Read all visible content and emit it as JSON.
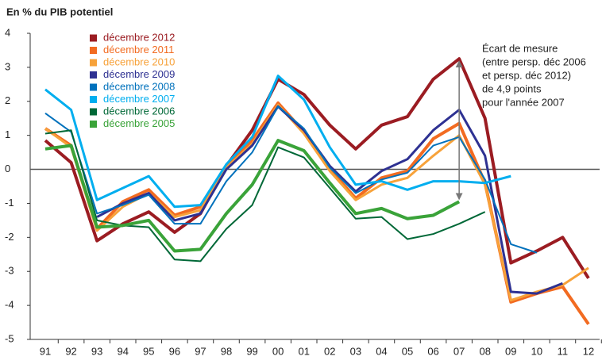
{
  "chart_data": {
    "type": "line",
    "y_label": "En % du PIB potentiel",
    "categories": [
      "91",
      "92",
      "93",
      "94",
      "95",
      "96",
      "97",
      "98",
      "99",
      "00",
      "01",
      "02",
      "03",
      "04",
      "05",
      "06",
      "07",
      "08",
      "09",
      "10",
      "11",
      "12"
    ],
    "ylim": [
      -5,
      4
    ],
    "yticks": [
      -5,
      -4,
      -3,
      -2,
      -1,
      0,
      1,
      2,
      3,
      4
    ],
    "series": [
      {
        "name": "décembre 2012",
        "color": "#9b1c22",
        "width": 4,
        "values": [
          0.85,
          0.2,
          -2.1,
          -1.6,
          -1.25,
          -1.85,
          -1.3,
          0.1,
          1.15,
          2.65,
          2.2,
          1.3,
          0.6,
          1.3,
          1.55,
          2.65,
          3.25,
          1.5,
          -2.75,
          -2.4,
          -2.0,
          -3.2
        ]
      },
      {
        "name": "décembre 2011",
        "color": "#f26b21",
        "width": 4,
        "values": [
          1.2,
          0.7,
          -1.75,
          -0.95,
          -0.6,
          -1.35,
          -1.1,
          0.1,
          0.85,
          1.95,
          1.1,
          0.0,
          -0.85,
          -0.25,
          -0.05,
          0.9,
          1.35,
          -0.4,
          -3.9,
          -3.65,
          -3.45,
          -4.55
        ]
      },
      {
        "name": "décembre 2010",
        "color": "#f7a23a",
        "width": 3,
        "values": [
          1.2,
          0.65,
          -1.8,
          -1.1,
          -0.7,
          -1.4,
          -1.2,
          0.05,
          0.75,
          1.9,
          1.05,
          -0.05,
          -0.9,
          -0.45,
          -0.25,
          0.4,
          1.0,
          -0.45,
          -3.85,
          -3.6,
          -3.4,
          -2.9
        ]
      },
      {
        "name": "décembre 2009",
        "color": "#2e3192",
        "width": 3,
        "values": [
          null,
          null,
          -1.4,
          -1.0,
          -0.7,
          -1.5,
          -1.3,
          0.0,
          0.7,
          1.85,
          1.15,
          0.1,
          -0.65,
          -0.05,
          0.3,
          1.15,
          1.75,
          0.4,
          -3.6,
          -3.65,
          -3.35,
          null
        ]
      },
      {
        "name": "décembre 2008",
        "color": "#0071bc",
        "width": 2,
        "values": [
          1.65,
          1.1,
          -1.3,
          -1.05,
          -0.75,
          -1.6,
          -1.6,
          -0.35,
          0.5,
          1.85,
          1.2,
          0.05,
          -0.7,
          -0.3,
          -0.1,
          0.7,
          0.95,
          -0.3,
          -2.2,
          -2.45,
          null,
          null
        ]
      },
      {
        "name": "décembre 2007",
        "color": "#00aeef",
        "width": 3,
        "values": [
          2.35,
          1.75,
          -0.9,
          -0.55,
          -0.2,
          -1.1,
          -1.05,
          0.15,
          0.95,
          2.75,
          2.05,
          0.65,
          -0.45,
          -0.35,
          -0.6,
          -0.35,
          -0.35,
          -0.4,
          -0.2,
          null,
          null,
          null
        ]
      },
      {
        "name": "décembre 2006",
        "color": "#006837",
        "width": 2,
        "values": [
          1.05,
          1.15,
          -1.5,
          -1.65,
          -1.7,
          -2.65,
          -2.7,
          -1.75,
          -1.05,
          0.65,
          0.35,
          -0.55,
          -1.45,
          -1.4,
          -2.05,
          -1.9,
          -1.6,
          -1.25,
          null,
          null,
          null,
          null
        ]
      },
      {
        "name": "décembre 2005",
        "color": "#3aa339",
        "width": 4,
        "values": [
          0.6,
          0.7,
          -1.7,
          -1.65,
          -1.5,
          -2.4,
          -2.35,
          -1.3,
          -0.45,
          0.85,
          0.55,
          -0.4,
          -1.3,
          -1.15,
          -1.45,
          -1.35,
          -0.95,
          null,
          null,
          null,
          null,
          null
        ]
      }
    ],
    "annotation": [
      "Écart de mesure",
      "(entre persp. déc 2006",
      "et persp. déc 2012)",
      "de 4,9 points",
      "pour l'année 2007"
    ]
  }
}
